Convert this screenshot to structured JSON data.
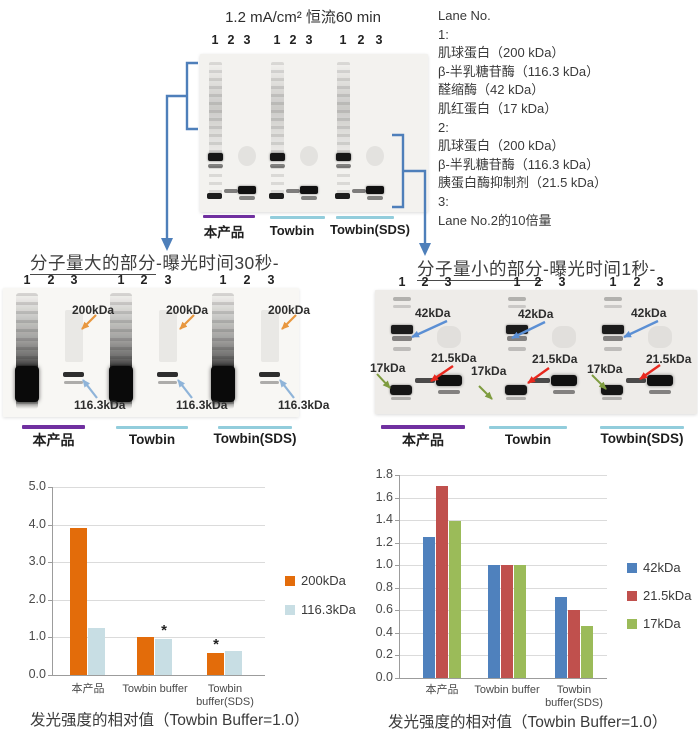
{
  "colors": {
    "accent_blue": "#4E7FBA",
    "purple_underline": "#7030A0",
    "teal_underline": "#92CDDC",
    "orange_arrow": "#E8973F",
    "lightblue_arrow": "#8FB4D9",
    "steelblue_arrow": "#5B8FD4",
    "red_arrow": "#E8281E",
    "green_arrow": "#7E9C3F"
  },
  "top_section": {
    "title": "1.2 mA/cm² 恒流60 min",
    "lane_numbers": [
      "1",
      "2",
      "3",
      "1",
      "2",
      "3",
      "1",
      "2",
      "3"
    ],
    "group_labels": [
      "本产品",
      "Towbin",
      "Towbin(SDS)"
    ],
    "lane_legend": {
      "title": "Lane No.",
      "lines": [
        "1:",
        "肌球蛋白（200 kDa）",
        "β-半乳糖苷酶（116.3 kDa）",
        "醛缩酶（42 kDa）",
        "肌红蛋白（17 kDa）",
        "2:",
        "肌球蛋白（200 kDa）",
        "β-半乳糖苷酶（116.3 kDa）",
        "胰蛋白酶抑制剂（21.5 kDa）",
        "3:",
        "Lane No.2的10倍量"
      ]
    }
  },
  "large_mw_section": {
    "title_main": "分子量大的部分",
    "title_suffix": "-曝光时间30秒-",
    "lane_numbers": [
      "1",
      "2",
      "3",
      "1",
      "2",
      "3",
      "1",
      "2",
      "3"
    ],
    "marker_200": "200kDa",
    "marker_116": "116.3kDa",
    "group_labels": [
      "本产品",
      "Towbin",
      "Towbin(SDS)"
    ]
  },
  "small_mw_section": {
    "title_main": "分子量小的部分",
    "title_suffix": "-曝光时间1秒-",
    "lane_numbers": [
      "1",
      "2",
      "3",
      "1",
      "2",
      "3",
      "1",
      "2",
      "3"
    ],
    "marker_42": "42kDa",
    "marker_215": "21.5kDa",
    "marker_17": "17kDa",
    "group_labels": [
      "本产品",
      "Towbin",
      "Towbin(SDS)"
    ]
  },
  "chart_data": [
    {
      "type": "bar",
      "title": "",
      "categories": [
        "本产品",
        "Towbin buffer",
        "Towbin\nbuffer(SDS)"
      ],
      "series": [
        {
          "name": "200kDa",
          "color": "#E36C0A",
          "values": [
            3.9,
            1.0,
            0.58
          ]
        },
        {
          "name": "116.3kDa",
          "color": "#C8DEE4",
          "values": [
            1.25,
            0.97,
            0.65
          ]
        }
      ],
      "ylim": [
        0,
        5.0
      ],
      "ytick_step": 1.0,
      "grid": true,
      "legend_position": "right",
      "annotations": [
        {
          "category_index": 1,
          "series_index": 1,
          "symbol": "*"
        },
        {
          "category_index": 2,
          "series_index": 0,
          "symbol": "*"
        }
      ],
      "caption": "发光强度的相对值（Towbin Buffer=1.0）"
    },
    {
      "type": "bar",
      "title": "",
      "categories": [
        "本产品",
        "Towbin buffer",
        "Towbin\nbuffer(SDS)"
      ],
      "series": [
        {
          "name": "42kDa",
          "color": "#4F81BD",
          "values": [
            1.25,
            1.0,
            0.72
          ]
        },
        {
          "name": "21.5kDa",
          "color": "#C0504D",
          "values": [
            1.7,
            1.0,
            0.6
          ]
        },
        {
          "name": "17kDa",
          "color": "#9BBB59",
          "values": [
            1.39,
            1.0,
            0.46
          ]
        }
      ],
      "ylim": [
        0,
        1.8
      ],
      "ytick_step": 0.2,
      "grid": true,
      "legend_position": "right",
      "annotations": [],
      "caption": "发光强度的相对值（Towbin Buffer=1.0）"
    }
  ]
}
